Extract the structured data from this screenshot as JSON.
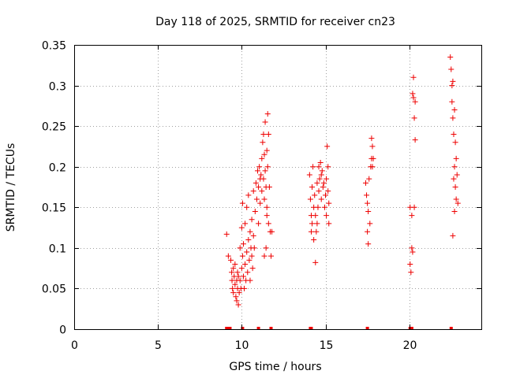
{
  "chart_data": {
    "type": "scatter",
    "title": "Day 118 of 2025, SRMTID for receiver cn23",
    "xlabel": "GPS time / hours",
    "ylabel": "SRMTID / TECUs",
    "xlim": [
      0,
      24.3
    ],
    "ylim": [
      0,
      0.35
    ],
    "x_ticks": [
      "0",
      "5",
      "10",
      "15",
      "20"
    ],
    "x_tick_values": [
      0,
      5,
      10,
      15,
      20
    ],
    "y_ticks": [
      "0",
      "0.05",
      "0.1",
      "0.15",
      "0.2",
      "0.25",
      "0.3",
      "0.35"
    ],
    "y_tick_values": [
      0,
      0.05,
      0.1,
      0.15,
      0.2,
      0.25,
      0.3,
      0.35
    ],
    "grid": true,
    "marker": "+",
    "color": "#ee0000",
    "series": [
      {
        "name": "SRMTID",
        "points": [
          [
            9.1,
            0.117
          ],
          [
            9.2,
            0.09
          ],
          [
            9.35,
            0.085
          ],
          [
            9.4,
            0.07
          ],
          [
            9.42,
            0.06
          ],
          [
            9.45,
            0.05
          ],
          [
            9.5,
            0.075
          ],
          [
            9.5,
            0.045
          ],
          [
            9.55,
            0.065
          ],
          [
            9.6,
            0.08
          ],
          [
            9.6,
            0.055
          ],
          [
            9.65,
            0.04
          ],
          [
            9.7,
            0.06
          ],
          [
            9.7,
            0.035
          ],
          [
            9.75,
            0.07
          ],
          [
            9.75,
            0.05
          ],
          [
            9.8,
            0.03
          ],
          [
            9.8,
            0.065
          ],
          [
            9.85,
            0.045
          ],
          [
            9.9,
            0.06
          ],
          [
            9.9,
            0.1
          ],
          [
            9.95,
            0.05
          ],
          [
            10.0,
            0.075
          ],
          [
            10.0,
            0.125
          ],
          [
            10.05,
            0.09
          ],
          [
            10.05,
            0.155
          ],
          [
            10.1,
            0.065
          ],
          [
            10.1,
            0.105
          ],
          [
            10.15,
            0.05
          ],
          [
            10.2,
            0.08
          ],
          [
            10.2,
            0.13
          ],
          [
            10.25,
            0.06
          ],
          [
            10.3,
            0.095
          ],
          [
            10.3,
            0.15
          ],
          [
            10.35,
            0.07
          ],
          [
            10.4,
            0.11
          ],
          [
            10.4,
            0.165
          ],
          [
            10.45,
            0.085
          ],
          [
            10.5,
            0.06
          ],
          [
            10.5,
            0.12
          ],
          [
            10.55,
            0.1
          ],
          [
            10.6,
            0.09
          ],
          [
            10.6,
            0.135
          ],
          [
            10.65,
            0.075
          ],
          [
            10.7,
            0.115
          ],
          [
            10.7,
            0.17
          ],
          [
            10.75,
            0.1
          ],
          [
            10.8,
            0.145
          ],
          [
            10.85,
            0.18
          ],
          [
            10.9,
            0.16
          ],
          [
            10.95,
            0.195
          ],
          [
            11.0,
            0.175
          ],
          [
            11.0,
            0.13
          ],
          [
            11.05,
            0.2
          ],
          [
            11.1,
            0.185
          ],
          [
            11.1,
            0.155
          ],
          [
            11.15,
            0.19
          ],
          [
            11.2,
            0.17
          ],
          [
            11.2,
            0.21
          ],
          [
            11.25,
            0.23
          ],
          [
            11.3,
            0.185
          ],
          [
            11.3,
            0.24
          ],
          [
            11.35,
            0.16
          ],
          [
            11.35,
            0.215
          ],
          [
            11.4,
            0.195
          ],
          [
            11.4,
            0.255
          ],
          [
            11.45,
            0.175
          ],
          [
            11.5,
            0.22
          ],
          [
            11.5,
            0.15
          ],
          [
            11.55,
            0.265
          ],
          [
            11.55,
            0.2
          ],
          [
            11.6,
            0.24
          ],
          [
            11.6,
            0.13
          ],
          [
            11.65,
            0.175
          ],
          [
            11.7,
            0.12
          ],
          [
            11.75,
            0.09
          ],
          [
            11.8,
            0.12
          ],
          [
            11.35,
            0.09
          ],
          [
            11.45,
            0.1
          ],
          [
            11.5,
            0.14
          ],
          [
            14.05,
            0.19
          ],
          [
            14.1,
            0.16
          ],
          [
            14.15,
            0.14
          ],
          [
            14.15,
            0.12
          ],
          [
            14.2,
            0.175
          ],
          [
            14.2,
            0.13
          ],
          [
            14.25,
            0.2
          ],
          [
            14.3,
            0.15
          ],
          [
            14.3,
            0.11
          ],
          [
            14.35,
            0.165
          ],
          [
            14.4,
            0.14
          ],
          [
            14.4,
            0.082
          ],
          [
            14.45,
            0.12
          ],
          [
            14.5,
            0.18
          ],
          [
            14.5,
            0.13
          ],
          [
            14.55,
            0.15
          ],
          [
            14.6,
            0.2
          ],
          [
            14.6,
            0.17
          ],
          [
            14.65,
            0.185
          ],
          [
            14.7,
            0.205
          ],
          [
            14.75,
            0.19
          ],
          [
            14.75,
            0.16
          ],
          [
            14.8,
            0.195
          ],
          [
            14.85,
            0.175
          ],
          [
            14.9,
            0.18
          ],
          [
            14.95,
            0.15
          ],
          [
            15.0,
            0.165
          ],
          [
            15.05,
            0.185
          ],
          [
            15.05,
            0.14
          ],
          [
            15.1,
            0.225
          ],
          [
            15.15,
            0.17
          ],
          [
            15.15,
            0.2
          ],
          [
            15.2,
            0.155
          ],
          [
            15.2,
            0.13
          ],
          [
            17.4,
            0.18
          ],
          [
            17.45,
            0.165
          ],
          [
            17.5,
            0.155
          ],
          [
            17.5,
            0.12
          ],
          [
            17.55,
            0.145
          ],
          [
            17.55,
            0.105
          ],
          [
            17.6,
            0.185
          ],
          [
            17.65,
            0.13
          ],
          [
            17.7,
            0.2
          ],
          [
            17.75,
            0.21
          ],
          [
            17.75,
            0.235
          ],
          [
            17.8,
            0.2
          ],
          [
            17.8,
            0.225
          ],
          [
            17.85,
            0.21
          ],
          [
            20.05,
            0.15
          ],
          [
            20.05,
            0.08
          ],
          [
            20.1,
            0.07
          ],
          [
            20.15,
            0.1
          ],
          [
            20.15,
            0.14
          ],
          [
            20.2,
            0.095
          ],
          [
            20.2,
            0.29
          ],
          [
            20.25,
            0.31
          ],
          [
            20.25,
            0.285
          ],
          [
            20.3,
            0.26
          ],
          [
            20.3,
            0.15
          ],
          [
            20.35,
            0.28
          ],
          [
            20.35,
            0.233
          ],
          [
            22.45,
            0.335
          ],
          [
            22.5,
            0.32
          ],
          [
            22.55,
            0.3
          ],
          [
            22.55,
            0.28
          ],
          [
            22.6,
            0.305
          ],
          [
            22.6,
            0.26
          ],
          [
            22.6,
            0.115
          ],
          [
            22.65,
            0.24
          ],
          [
            22.65,
            0.185
          ],
          [
            22.7,
            0.27
          ],
          [
            22.7,
            0.2
          ],
          [
            22.7,
            0.145
          ],
          [
            22.75,
            0.23
          ],
          [
            22.75,
            0.175
          ],
          [
            22.8,
            0.21
          ],
          [
            22.8,
            0.16
          ],
          [
            22.85,
            0.19
          ],
          [
            22.9,
            0.155
          ]
        ]
      }
    ],
    "rug_x": [
      9.1,
      9.15,
      9.2,
      9.3,
      10.05,
      11.0,
      11.75,
      14.1,
      14.15,
      17.5,
      20.05,
      20.15,
      22.5
    ]
  }
}
